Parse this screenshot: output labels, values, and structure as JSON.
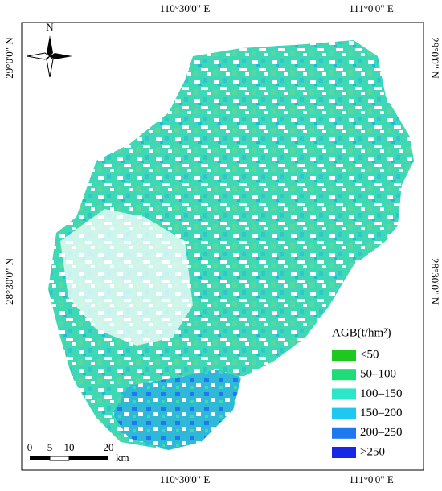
{
  "north": "N",
  "lon_labels": [
    "110°30'0\" E",
    "111°0'0\" E"
  ],
  "lat_labels": [
    "29°0'0\" N",
    "28°30'0\" N"
  ],
  "legend": {
    "title": "AGB(t/hm²)",
    "items": [
      {
        "label": "<50",
        "color": "#1ec81e"
      },
      {
        "label": "50–100",
        "color": "#1edc78"
      },
      {
        "label": "100–150",
        "color": "#2de6c8"
      },
      {
        "label": "150–200",
        "color": "#1ec8f0"
      },
      {
        "label": "200–250",
        "color": "#1e78f0"
      },
      {
        "label": ">250",
        "color": "#1428e6"
      }
    ]
  },
  "scale_bar": {
    "labels": [
      "0",
      "5",
      "10",
      "20"
    ],
    "unit": "km"
  }
}
